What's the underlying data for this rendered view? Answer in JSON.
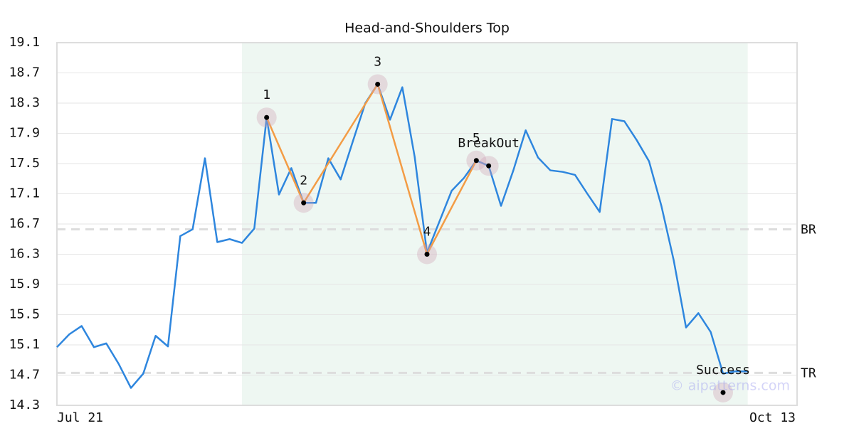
{
  "chart_data": {
    "type": "line",
    "title": "Head-and-Shoulders Top",
    "categories": [
      "Jul 21",
      null,
      null,
      null,
      null,
      null,
      null,
      null,
      null,
      null,
      null,
      null,
      null,
      null,
      null,
      null,
      null,
      null,
      null,
      null,
      null,
      null,
      null,
      null,
      null,
      null,
      null,
      null,
      null,
      null,
      null,
      null,
      null,
      null,
      null,
      null,
      null,
      null,
      null,
      null,
      null,
      null,
      null,
      null,
      null,
      null,
      null,
      null,
      null,
      null,
      null,
      null,
      null,
      null,
      null,
      null,
      null,
      null,
      null,
      null,
      "Oct 13"
    ],
    "series": [
      {
        "color": "#2e86de",
        "values": [
          15.07,
          15.24,
          15.35,
          15.07,
          15.12,
          14.85,
          14.53,
          14.72,
          15.22,
          15.08,
          16.54,
          16.63,
          17.57,
          16.46,
          16.5,
          16.45,
          16.64,
          18.11,
          17.09,
          17.44,
          16.98,
          16.98,
          17.57,
          17.29,
          17.8,
          18.3,
          18.55,
          18.08,
          18.51,
          17.59,
          16.32,
          16.73,
          17.14,
          17.31,
          17.54,
          17.47,
          16.94,
          17.41,
          17.94,
          17.58,
          17.41,
          17.39,
          17.35,
          17.1,
          16.86,
          18.09,
          18.06,
          17.81,
          17.53,
          16.94,
          16.22,
          15.33,
          15.52,
          15.27,
          14.72,
          14.75,
          14.75,
          null,
          null,
          null,
          null
        ]
      }
    ],
    "ylim": [
      14.3,
      19.1
    ],
    "yticks": [
      14.3,
      14.7,
      15.1,
      15.5,
      15.9,
      16.3,
      16.7,
      17.1,
      17.5,
      17.9,
      18.3,
      18.7,
      19.1
    ],
    "grid": true,
    "highlight": [
      15,
      56
    ],
    "highlight_color": "#eef7f2",
    "pattern_color": "#f39c45",
    "pattern_points": [
      {
        "label": "1",
        "x": 17,
        "y": 18.11
      },
      {
        "label": "2",
        "x": 20,
        "y": 16.98
      },
      {
        "label": "3",
        "x": 26,
        "y": 18.55
      },
      {
        "label": "4",
        "x": 30,
        "y": 16.3
      },
      {
        "label": "5",
        "x": 34,
        "y": 17.54
      }
    ],
    "events": [
      {
        "label": "BreakOut",
        "x": 35,
        "y": 17.47
      },
      {
        "label": "Success",
        "x": 54,
        "y": 14.47
      }
    ],
    "levels": [
      {
        "label": "BR",
        "value": 16.63
      },
      {
        "label": "TR",
        "value": 14.73
      }
    ],
    "watermark": "© aipatterns.com"
  }
}
